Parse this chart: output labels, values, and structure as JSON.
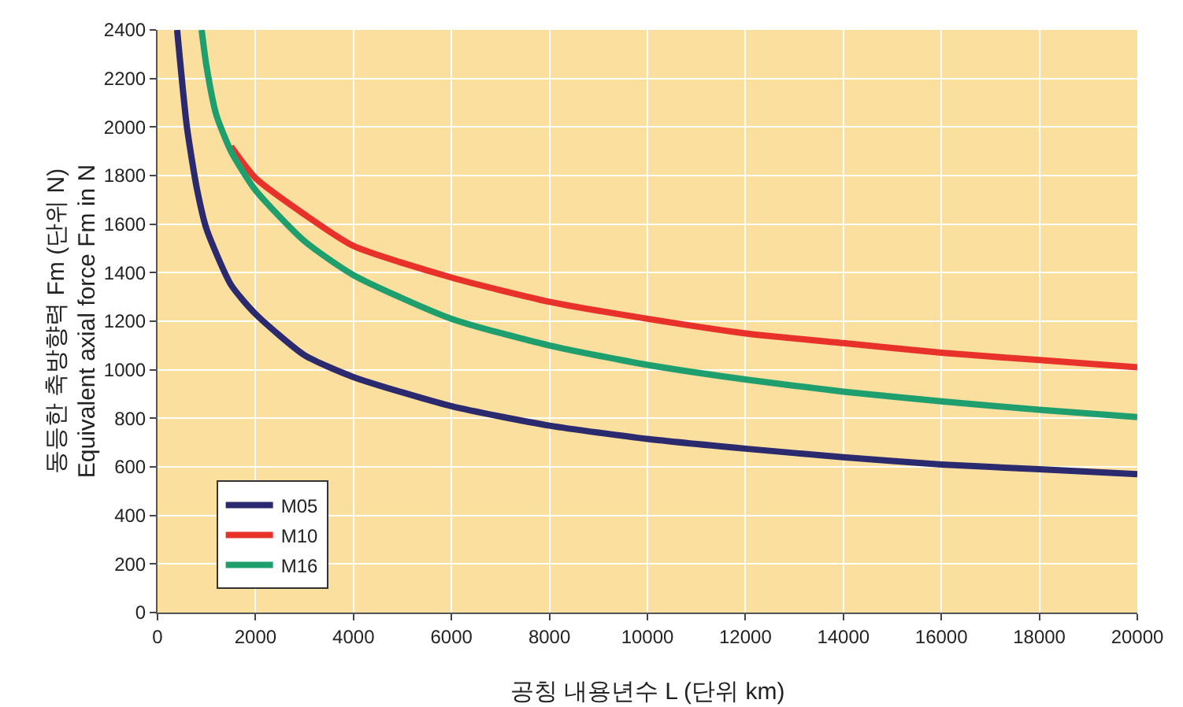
{
  "chart_data": {
    "type": "line",
    "xlabel": "공칭 내용년수 L (단위 km)",
    "ylabel": "동등한 축방향력 Fm (단위 N)\nEquivalent axial force Fm in N",
    "series": [
      {
        "name": "M05",
        "color": "#2b2a6e",
        "x": [
          400,
          600,
          800,
          1000,
          1500,
          2000,
          3000,
          4000,
          6000,
          8000,
          10000,
          12000,
          14000,
          16000,
          18000,
          20000
        ],
        "values": [
          2400,
          2000,
          1750,
          1580,
          1350,
          1230,
          1060,
          970,
          850,
          770,
          715,
          675,
          640,
          610,
          590,
          570
        ]
      },
      {
        "name": "M10",
        "color": "#e8312a",
        "x": [
          1500,
          2000,
          3000,
          4000,
          6000,
          8000,
          10000,
          12000,
          14000,
          16000,
          18000,
          20000
        ],
        "values": [
          1920,
          1790,
          1640,
          1510,
          1380,
          1280,
          1210,
          1150,
          1110,
          1070,
          1040,
          1010
        ]
      },
      {
        "name": "M16",
        "color": "#1f9e6e",
        "x": [
          900,
          1000,
          1200,
          1500,
          2000,
          3000,
          4000,
          6000,
          8000,
          10000,
          12000,
          14000,
          16000,
          18000,
          20000
        ],
        "values": [
          2400,
          2250,
          2050,
          1900,
          1740,
          1530,
          1390,
          1210,
          1100,
          1020,
          960,
          910,
          870,
          835,
          805
        ]
      }
    ],
    "xlim": [
      0,
      20000
    ],
    "xticks": [
      0,
      2000,
      4000,
      6000,
      8000,
      10000,
      12000,
      14000,
      16000,
      18000,
      20000
    ],
    "ylim": [
      0,
      2400
    ],
    "yticks": [
      0,
      200,
      400,
      600,
      800,
      1000,
      1200,
      1400,
      1600,
      1800,
      2000,
      2200,
      2400
    ],
    "grid": true,
    "legend": "bottom left",
    "marker": "none",
    "line_style": "solid"
  }
}
